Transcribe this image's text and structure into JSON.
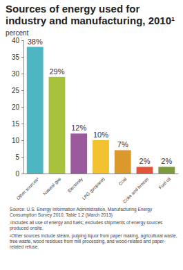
{
  "chart_data": {
    "type": "bar",
    "title": "Sources of energy used for industry and manufacturing, 2010¹",
    "y_label": "percent",
    "categories": [
      "Other sources²",
      "Natural gas",
      "Electricity",
      "LPG (propane)",
      "Coal",
      "Coke and breeze",
      "Fuel oil"
    ],
    "values": [
      38,
      29,
      12,
      10,
      7,
      2,
      2
    ],
    "value_labels": [
      "38%",
      "29%",
      "12%",
      "10%",
      "7%",
      "2%",
      "2%"
    ],
    "colors": [
      "#4db6c2",
      "#a9c23c",
      "#9a5a9c",
      "#f2c230",
      "#d9992c",
      "#e2553a",
      "#7d9a3c"
    ],
    "ylim": [
      0,
      40
    ],
    "yticks": [
      0,
      5,
      10,
      15,
      20,
      25,
      30,
      35,
      40
    ],
    "grid": false,
    "data_labels": true,
    "annotations": [
      "Source: U.S. Energy Information Administration, Manufacturing Energy Consumption Survey 2010, Table 1.2 (March 2013)",
      "¹Includes all use of energy and fuels; excludes shipments of energy sources produced onsite.",
      "²Other sources include steam, pulping liquor from paper making, agricultural waste, tree waste, wood residues from mill processing, and wood-related and paper-related refuse."
    ]
  }
}
